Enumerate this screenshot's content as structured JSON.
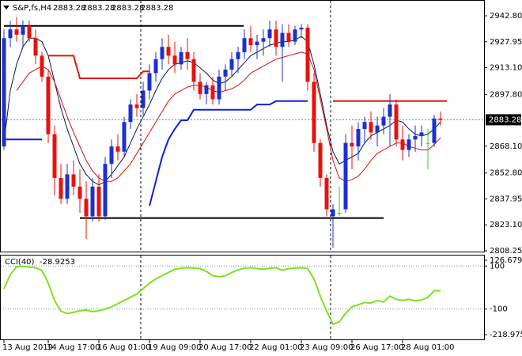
{
  "chart_data": {
    "type": "candlestick",
    "title": "S&P,fs,H4",
    "quote": [
      2883.28,
      2883.28,
      2883.28,
      2883.28
    ],
    "categories": [
      "13 Aug 2019",
      null,
      null,
      null,
      null,
      null,
      null,
      "14 Aug 17:00",
      null,
      null,
      null,
      null,
      null,
      null,
      null,
      "16 Aug 01:00",
      null,
      null,
      null,
      null,
      null,
      null,
      null,
      "19 Aug 09:00",
      null,
      null,
      null,
      null,
      null,
      null,
      null,
      "20 Aug 17:00",
      null,
      null,
      null,
      null,
      null,
      null,
      null,
      "22 Aug 01:00",
      null,
      null,
      null,
      null,
      null,
      null,
      null,
      "23 Aug 09:00",
      null,
      null,
      null,
      null,
      null,
      null,
      null,
      "26 Aug 17:00",
      null,
      null,
      null,
      null,
      null,
      null,
      null,
      "28 Aug 01:00",
      null,
      null,
      null,
      null,
      null,
      null
    ],
    "candles": [
      [
        2868,
        2935,
        2866,
        2930
      ],
      [
        2930,
        2940,
        2925,
        2935
      ],
      [
        2935,
        2942,
        2928,
        2932
      ],
      [
        2932,
        2940,
        2925,
        2937
      ],
      [
        2937,
        2940,
        2928,
        2930
      ],
      [
        2930,
        2935,
        2915,
        2920
      ],
      [
        2920,
        2922,
        2905,
        2908
      ],
      [
        2908,
        2912,
        2870,
        2875
      ],
      [
        2875,
        2880,
        2840,
        2850
      ],
      [
        2850,
        2858,
        2835,
        2838
      ],
      [
        2838,
        2858,
        2835,
        2852
      ],
      [
        2852,
        2860,
        2840,
        2845
      ],
      [
        2845,
        2855,
        2830,
        2838
      ],
      [
        2838,
        2848,
        2815,
        2828
      ],
      [
        2828,
        2850,
        2825,
        2845
      ],
      [
        2845,
        2852,
        2825,
        2828
      ],
      [
        2828,
        2862,
        2826,
        2858
      ],
      [
        2858,
        2872,
        2850,
        2868
      ],
      [
        2868,
        2875,
        2860,
        2865
      ],
      [
        2865,
        2885,
        2862,
        2882
      ],
      [
        2882,
        2895,
        2878,
        2892
      ],
      [
        2892,
        2898,
        2885,
        2890
      ],
      [
        2890,
        2905,
        2886,
        2900
      ],
      [
        2900,
        2915,
        2895,
        2910
      ],
      [
        2910,
        2922,
        2905,
        2918
      ],
      [
        2918,
        2930,
        2912,
        2925
      ],
      [
        2925,
        2932,
        2915,
        2920
      ],
      [
        2920,
        2928,
        2910,
        2915
      ],
      [
        2915,
        2925,
        2912,
        2922
      ],
      [
        2922,
        2930,
        2912,
        2918
      ],
      [
        2918,
        2922,
        2900,
        2905
      ],
      [
        2905,
        2910,
        2895,
        2898
      ],
      [
        2898,
        2905,
        2892,
        2903
      ],
      [
        2903,
        2908,
        2892,
        2895
      ],
      [
        2895,
        2912,
        2892,
        2908
      ],
      [
        2908,
        2915,
        2900,
        2912
      ],
      [
        2912,
        2922,
        2908,
        2918
      ],
      [
        2918,
        2925,
        2910,
        2922
      ],
      [
        2922,
        2935,
        2918,
        2930
      ],
      [
        2930,
        2937,
        2922,
        2926
      ],
      [
        2926,
        2932,
        2918,
        2928
      ],
      [
        2928,
        2935,
        2920,
        2930
      ],
      [
        2930,
        2940,
        2925,
        2935
      ],
      [
        2935,
        2940,
        2920,
        2925
      ],
      [
        2925,
        2938,
        2905,
        2933
      ],
      [
        2933,
        2938,
        2925,
        2928
      ],
      [
        2928,
        2937,
        2926,
        2935
      ],
      [
        2935,
        2938,
        2930,
        2936
      ],
      [
        2936,
        2938,
        2900,
        2905
      ],
      [
        2905,
        2910,
        2865,
        2870
      ],
      [
        2870,
        2872,
        2845,
        2850
      ],
      [
        2850,
        2852,
        2828,
        2832
      ],
      [
        2828,
        2835,
        2810,
        2832
      ],
      [
        2830,
        2845,
        2828,
        2830
      ],
      [
        2832,
        2875,
        2830,
        2870
      ],
      [
        2870,
        2880,
        2855,
        2868
      ],
      [
        2868,
        2882,
        2860,
        2878
      ],
      [
        2878,
        2885,
        2870,
        2882
      ],
      [
        2882,
        2888,
        2872,
        2876
      ],
      [
        2876,
        2885,
        2868,
        2880
      ],
      [
        2880,
        2890,
        2875,
        2885
      ],
      [
        2885,
        2898,
        2868,
        2892
      ],
      [
        2892,
        2895,
        2868,
        2872
      ],
      [
        2872,
        2880,
        2860,
        2866
      ],
      [
        2866,
        2875,
        2862,
        2872
      ],
      [
        2872,
        2880,
        2865,
        2874
      ],
      [
        2874,
        2880,
        2868,
        2876
      ],
      [
        2870,
        2878,
        2855,
        2870
      ],
      [
        2870,
        2886,
        2868,
        2884
      ],
      [
        2884,
        2888,
        2880,
        2883.28
      ]
    ],
    "colors": {
      "up": "#1c2fd0",
      "down": "#e8120c",
      "flat": "#33cc33"
    },
    "series": [
      {
        "color": "#0a1450",
        "values": [
          2870,
          2900,
          2915,
          2925,
          2930,
          2930,
          2928,
          2920,
          2905,
          2890,
          2878,
          2868,
          2858,
          2852,
          2848,
          2846,
          2848,
          2852,
          2857,
          2862,
          2870,
          2878,
          2885,
          2892,
          2900,
          2907,
          2912,
          2915,
          2916,
          2917,
          2916,
          2913,
          2910,
          2906,
          2904,
          2905,
          2908,
          2912,
          2916,
          2920,
          2922,
          2924,
          2926,
          2927,
          2928,
          2928,
          2929,
          2931,
          2928,
          2915,
          2898,
          2880,
          2865,
          2858,
          2860,
          2862,
          2864,
          2870,
          2874,
          2876,
          2878,
          2880,
          2883,
          2882,
          2878,
          2875,
          2874,
          2875,
          2878,
          2882
        ]
      },
      {
        "color": "#d41010",
        "values": [
          null,
          null,
          2900,
          2905,
          2910,
          2912,
          2914,
          2912,
          2905,
          2895,
          2885,
          2876,
          2868,
          2860,
          2854,
          2850,
          2848,
          2848,
          2850,
          2854,
          2858,
          2864,
          2870,
          2876,
          2882,
          2888,
          2894,
          2898,
          2900,
          2902,
          2903,
          2903,
          2902,
          2900,
          2899,
          2900,
          2901,
          2903,
          2906,
          2910,
          2912,
          2914,
          2916,
          2918,
          2919,
          2920,
          2921,
          2922,
          2921,
          2912,
          2895,
          2878,
          2860,
          2850,
          2848,
          2849,
          2851,
          2855,
          2860,
          2864,
          2866,
          2868,
          2870,
          2870,
          2868,
          2867,
          2866,
          2866,
          2869,
          2873
        ]
      },
      {
        "color": "#1020d8",
        "values": [
          2872,
          2872,
          2872,
          2872,
          2872,
          2872,
          2872,
          null,
          null,
          null,
          null,
          null,
          null,
          null,
          null,
          null,
          null,
          null,
          null,
          null,
          null,
          null,
          null,
          2834,
          2848,
          2862,
          2872,
          2878,
          2883,
          2883,
          2889,
          2889,
          2889,
          2889,
          2889,
          2889,
          2889,
          2889,
          2889,
          2889,
          2892,
          2892,
          2892,
          2894,
          2894,
          2894,
          2894,
          2894,
          2894,
          null,
          null,
          null,
          null,
          null,
          null,
          null,
          null,
          null,
          null,
          null,
          null,
          null,
          null,
          null,
          null,
          null,
          null,
          null,
          null,
          null
        ]
      },
      {
        "color": "#e8120c",
        "values": [
          null,
          null,
          null,
          null,
          null,
          null,
          null,
          2920,
          2920,
          2920,
          2920,
          2920,
          2907,
          2907,
          2907,
          2907,
          2907,
          2907,
          2907,
          2907,
          2907,
          2907,
          2911,
          2911,
          null,
          null,
          null,
          null,
          null,
          null,
          null,
          null,
          null,
          null,
          null,
          null,
          null,
          null,
          null,
          null,
          null,
          null,
          null,
          null,
          null,
          null,
          null,
          null,
          null,
          null,
          null,
          null,
          null,
          null,
          null,
          null,
          null,
          null,
          null,
          null,
          null,
          null,
          null,
          null,
          null,
          null,
          null,
          null,
          null,
          null
        ]
      }
    ],
    "levels": [
      {
        "value": 2937,
        "color": "#000000"
      },
      {
        "value": 2827,
        "color": "#000000"
      },
      {
        "value": 2894,
        "color": "#e8120c"
      }
    ],
    "last": 2883.28,
    "ylim": [
      2808.25,
      2942.8
    ],
    "yticks": [
      {
        "value": 2942.8,
        "label": "2942.80"
      },
      2927.95,
      {
        "value": 2913.1,
        "label": "2913.10"
      },
      {
        "value": 2897.8,
        "label": "2897.80"
      },
      {
        "value": 2868.1,
        "label": "2868.10"
      },
      {
        "value": 2852.8,
        "label": "2852.80"
      },
      2837.95,
      {
        "value": 2823.1,
        "label": "2823.10"
      },
      2808.25
    ],
    "indicator": {
      "type": "line",
      "label": "CCI(40)",
      "current": -28.9253,
      "color": "#80e020",
      "values": [
        -7,
        60,
        97,
        98,
        95,
        92,
        80,
        20,
        -60,
        -110,
        -121,
        -115,
        -108,
        -105,
        -112,
        -108,
        -100,
        -90,
        -75,
        -60,
        -45,
        -30,
        -5,
        20,
        40,
        55,
        70,
        85,
        90,
        92,
        90,
        88,
        75,
        55,
        50,
        55,
        70,
        82,
        90,
        92,
        88,
        85,
        90,
        92,
        80,
        88,
        90,
        92,
        88,
        40,
        -40,
        -110,
        -170,
        -160,
        -120,
        -90,
        -80,
        -70,
        -72,
        -60,
        -68,
        -40,
        -55,
        -60,
        -55,
        -62,
        -58,
        -45,
        -15,
        -15
      ],
      "ylim": [
        -218.9751,
        126.6794
      ],
      "yticks": [
        126.6794,
        100,
        -100,
        -218.9751
      ],
      "levels": [
        100,
        -100
      ]
    }
  }
}
